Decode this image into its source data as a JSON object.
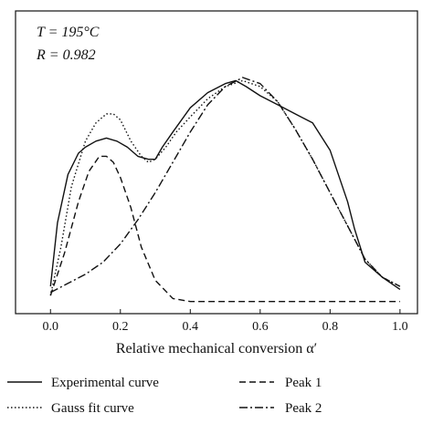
{
  "chart_data": {
    "type": "line",
    "annotations": {
      "temperature": "T = 195°C",
      "correlation": "R = 0.982"
    },
    "xlabel": "Relative mechanical conversion α′",
    "ylabel": "",
    "xlim": [
      -0.1,
      1.05
    ],
    "ylim": [
      0,
      1.0
    ],
    "xticks": [
      "0.0",
      "0.2",
      "0.4",
      "0.6",
      "0.8",
      "1.0"
    ],
    "grid": false,
    "legend_position": "bottom",
    "series": [
      {
        "name": "Experimental curve",
        "style": "solid",
        "x": [
          0.0,
          0.02,
          0.05,
          0.08,
          0.1,
          0.13,
          0.16,
          0.19,
          0.22,
          0.25,
          0.28,
          0.3,
          0.32,
          0.35,
          0.4,
          0.45,
          0.5,
          0.53,
          0.56,
          0.6,
          0.65,
          0.7,
          0.75,
          0.8,
          0.85,
          0.87,
          0.9,
          0.95,
          1.0
        ],
        "y": [
          0.09,
          0.3,
          0.46,
          0.53,
          0.55,
          0.57,
          0.58,
          0.57,
          0.55,
          0.52,
          0.51,
          0.51,
          0.55,
          0.6,
          0.68,
          0.73,
          0.76,
          0.77,
          0.75,
          0.72,
          0.69,
          0.66,
          0.63,
          0.54,
          0.37,
          0.28,
          0.17,
          0.12,
          0.08
        ]
      },
      {
        "name": "Gauss fit curve",
        "style": "dotted",
        "x": [
          0.0,
          0.03,
          0.06,
          0.1,
          0.13,
          0.16,
          0.18,
          0.2,
          0.23,
          0.26,
          0.28,
          0.3,
          0.33,
          0.36,
          0.4,
          0.45,
          0.5,
          0.55,
          0.6,
          0.65,
          0.7,
          0.75,
          0.8,
          0.85,
          0.9,
          0.95,
          1.0
        ],
        "y": [
          0.06,
          0.22,
          0.42,
          0.57,
          0.63,
          0.66,
          0.66,
          0.64,
          0.57,
          0.52,
          0.5,
          0.51,
          0.55,
          0.6,
          0.65,
          0.71,
          0.75,
          0.77,
          0.75,
          0.7,
          0.61,
          0.51,
          0.4,
          0.29,
          0.18,
          0.12,
          0.09
        ]
      },
      {
        "name": "Peak 1",
        "style": "dashed",
        "x": [
          0.0,
          0.04,
          0.08,
          0.11,
          0.14,
          0.16,
          0.18,
          0.2,
          0.23,
          0.26,
          0.3,
          0.35,
          0.4,
          0.5,
          0.6,
          0.8,
          1.0
        ],
        "y": [
          0.06,
          0.2,
          0.37,
          0.47,
          0.52,
          0.52,
          0.5,
          0.45,
          0.35,
          0.22,
          0.11,
          0.05,
          0.04,
          0.04,
          0.04,
          0.04,
          0.04
        ]
      },
      {
        "name": "Peak 2",
        "style": "dashdot",
        "x": [
          0.0,
          0.05,
          0.1,
          0.15,
          0.2,
          0.25,
          0.3,
          0.35,
          0.4,
          0.45,
          0.5,
          0.55,
          0.6,
          0.65,
          0.7,
          0.75,
          0.8,
          0.85,
          0.9,
          0.95,
          1.0
        ],
        "y": [
          0.07,
          0.1,
          0.13,
          0.17,
          0.23,
          0.31,
          0.4,
          0.5,
          0.6,
          0.69,
          0.75,
          0.78,
          0.76,
          0.7,
          0.61,
          0.51,
          0.4,
          0.29,
          0.18,
          0.12,
          0.09
        ]
      }
    ]
  },
  "legend": {
    "items": [
      {
        "label": "Experimental curve",
        "style": "solid"
      },
      {
        "label": "Peak 1",
        "style": "dashed"
      },
      {
        "label": "Gauss fit curve",
        "style": "dotted"
      },
      {
        "label": "Peak 2",
        "style": "dashdot"
      }
    ]
  },
  "colors": {
    "line": "#111111",
    "axis": "#111111",
    "background": "#ffffff"
  }
}
